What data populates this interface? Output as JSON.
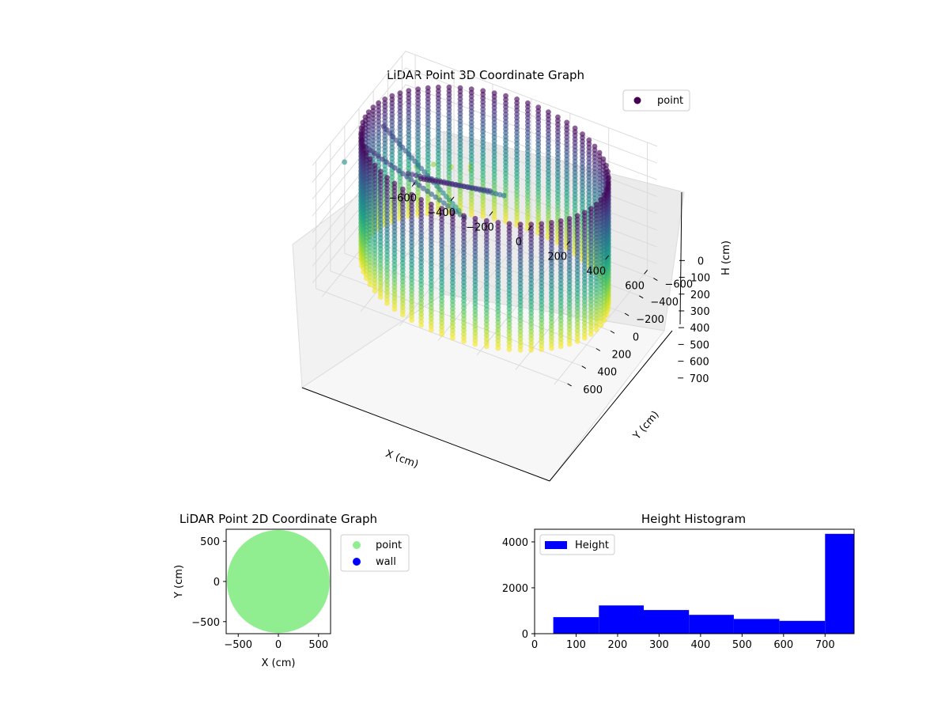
{
  "chart_data": [
    {
      "type": "scatter",
      "projection": "3d",
      "title": "LiDAR Point 3D Coordinate Graph",
      "xlabel": "X (cm)",
      "ylabel": "Y (cm)",
      "zlabel": "H (cm)",
      "xlim": [
        -650,
        650
      ],
      "ylim": [
        -650,
        650
      ],
      "zlim": [
        760,
        0
      ],
      "z_axis_inverted": true,
      "x_ticks": [
        "-600",
        "-400",
        "-200",
        "0",
        "200",
        "400",
        "600"
      ],
      "y_ticks": [
        "-600",
        "-400",
        "-200",
        "0",
        "200",
        "400",
        "600"
      ],
      "z_ticks": [
        "0",
        "100",
        "200",
        "300",
        "400",
        "500",
        "600",
        "700"
      ],
      "colormap": "viridis",
      "legend": {
        "entries": [
          "point"
        ],
        "placement": "top-right",
        "color": "#440154"
      },
      "series": [
        {
          "name": "point",
          "description_shape": "cylindrical wall of points, radius about 600 cm, heights 0 to 760 cm, plus interior structure and a few outliers",
          "wall_radius": 600,
          "height_range": [
            0,
            760
          ],
          "outliers": [
            {
              "x": -740,
              "y": -40,
              "h": 380
            },
            {
              "x": -680,
              "y": -200,
              "h": 540
            },
            {
              "x": -560,
              "y": -560,
              "h": 600
            },
            {
              "x": -520,
              "y": -690,
              "h": 640
            },
            {
              "x": -470,
              "y": -800,
              "h": 690
            },
            {
              "x": -400,
              "y": -880,
              "h": 720
            },
            {
              "x": -430,
              "y": -960,
              "h": 750
            }
          ]
        }
      ]
    },
    {
      "type": "scatter",
      "title": "LiDAR Point 2D Coordinate Graph",
      "xlabel": "X (cm)",
      "ylabel": "Y (cm)",
      "xlim": [
        -650,
        650
      ],
      "ylim": [
        -650,
        650
      ],
      "x_ticks": [
        "−500",
        "0",
        "500"
      ],
      "y_ticks": [
        "500",
        "0",
        "−500"
      ],
      "legend": {
        "placement": "right-outside",
        "entries": [
          {
            "name": "point",
            "color": "#90ee90"
          },
          {
            "name": "wall",
            "color": "#0000ff"
          }
        ]
      },
      "series": [
        {
          "name": "point",
          "color": "#90ee90",
          "shape": "filled disc of radius about 640 cm centered at origin"
        },
        {
          "name": "wall",
          "color": "#0000ff"
        }
      ]
    },
    {
      "type": "bar",
      "title": "Height Histogram",
      "xlabel": "",
      "ylabel": "",
      "xlim": [
        0,
        770
      ],
      "ylim": [
        0,
        4550
      ],
      "x_ticks": [
        "0",
        "100",
        "200",
        "300",
        "400",
        "500",
        "600",
        "700"
      ],
      "y_ticks": [
        "0",
        "2000",
        "4000"
      ],
      "bar_color": "#0000ff",
      "legend": {
        "entries": [
          "Height"
        ],
        "placement": "top-left"
      },
      "series": [
        {
          "name": "Height",
          "bins": [
            {
              "x0": 45,
              "x1": 155,
              "count": 720
            },
            {
              "x0": 155,
              "x1": 263,
              "count": 1230
            },
            {
              "x0": 263,
              "x1": 372,
              "count": 1030
            },
            {
              "x0": 372,
              "x1": 480,
              "count": 820
            },
            {
              "x0": 480,
              "x1": 590,
              "count": 640
            },
            {
              "x0": 590,
              "x1": 700,
              "count": 560
            },
            {
              "x0": 700,
              "x1": 770,
              "count": 4350
            }
          ]
        }
      ]
    }
  ]
}
